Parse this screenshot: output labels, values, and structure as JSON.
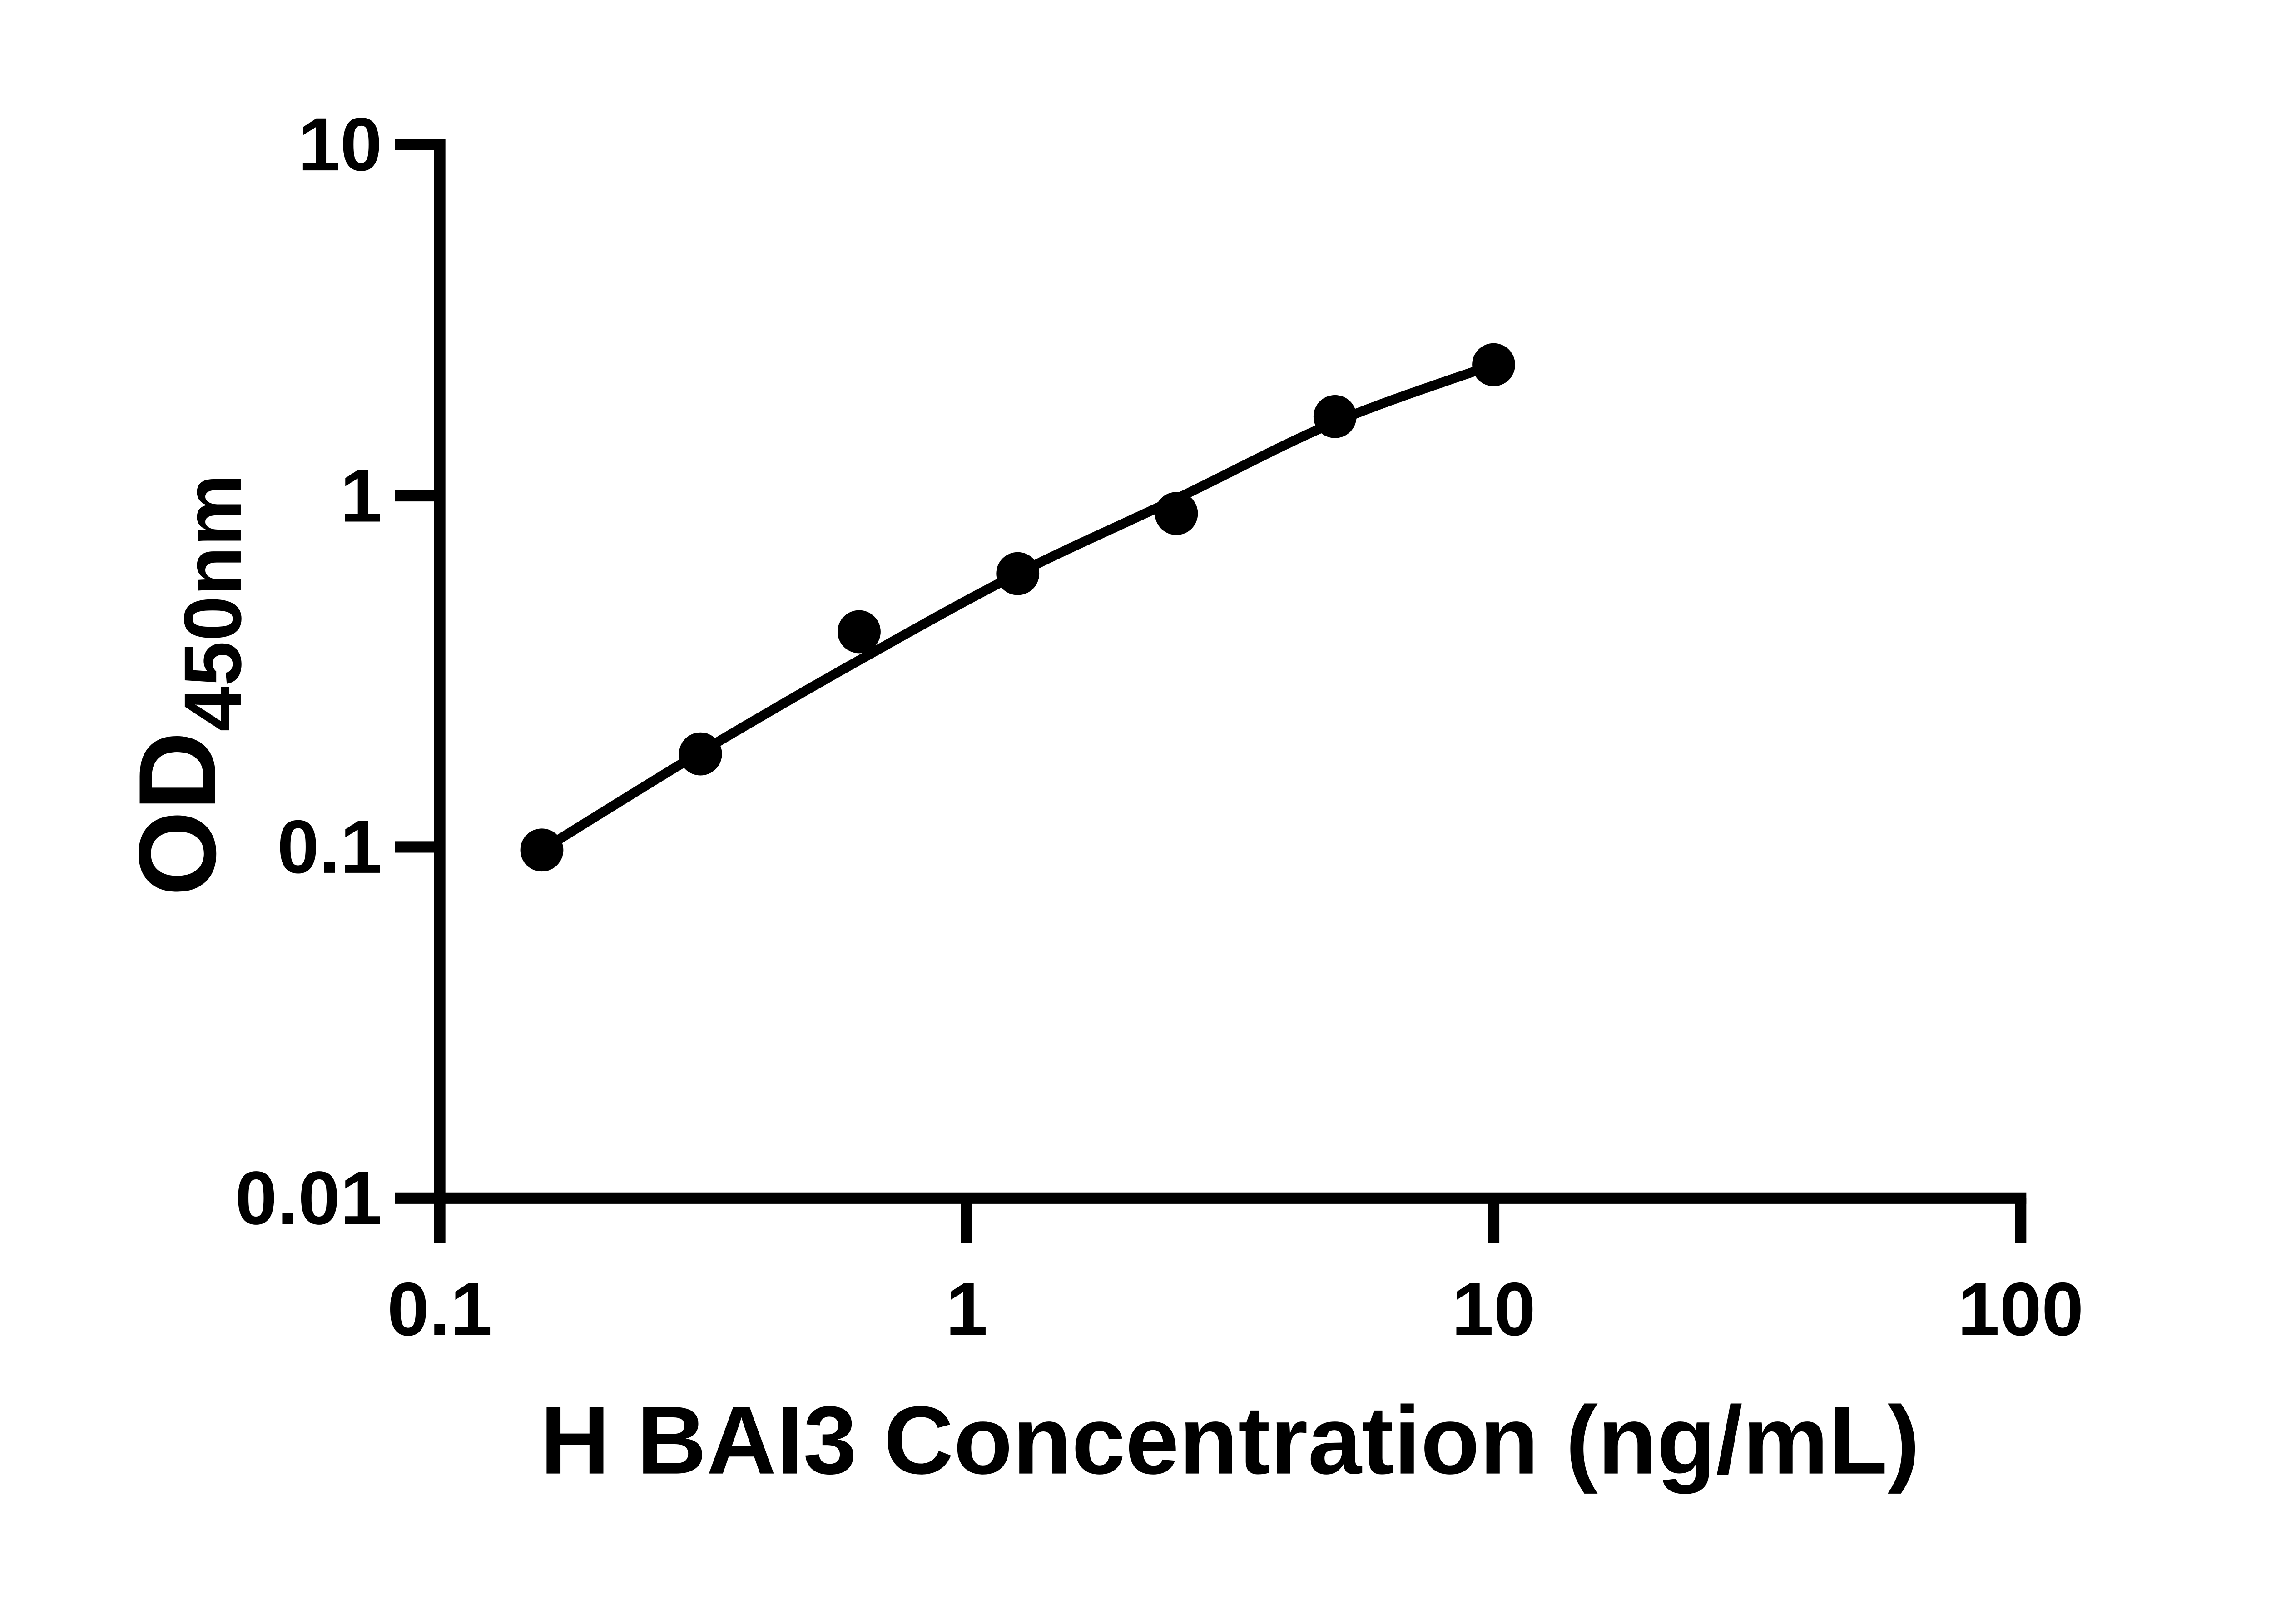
{
  "figure": {
    "background": "#ffffff",
    "ink_color": "#000000",
    "description": "ELISA standard curve, log-log scatter plot with fitted line"
  },
  "chart_data": {
    "type": "scatter",
    "title": "",
    "xlabel": "H BAI3 Concentration (ng/mL)",
    "ylabel": "OD450nm",
    "ylabel_rich": {
      "main": "OD",
      "subscript": "450nm"
    },
    "x_scale": "log10",
    "y_scale": "log10",
    "xlim": [
      0.1,
      100
    ],
    "ylim": [
      0.01,
      10
    ],
    "x_tick_values": [
      0.1,
      1,
      10,
      100
    ],
    "x_tick_labels": [
      "0.1",
      "1",
      "10",
      "100"
    ],
    "y_tick_values": [
      10,
      1,
      0.1,
      0.01
    ],
    "y_tick_labels": [
      "10",
      "1",
      "0.1",
      "0.01"
    ],
    "grid": false,
    "legend": "none",
    "marker": {
      "shape": "circle",
      "color": "#000000"
    },
    "line_color": "#000000",
    "series": [
      {
        "name": "standard-points",
        "type": "scatter",
        "x": [
          0.15625,
          0.3125,
          0.625,
          1.25,
          2.5,
          5,
          10
        ],
        "y": [
          0.098,
          0.184,
          0.41,
          0.6,
          0.89,
          1.68,
          2.36
        ]
      },
      {
        "name": "fitted-curve",
        "type": "line",
        "x": [
          0.15625,
          0.3125,
          0.625,
          1.25,
          2.5,
          5,
          10
        ],
        "y": [
          0.098,
          0.186,
          0.34,
          0.6,
          0.98,
          1.62,
          2.36
        ]
      }
    ]
  }
}
